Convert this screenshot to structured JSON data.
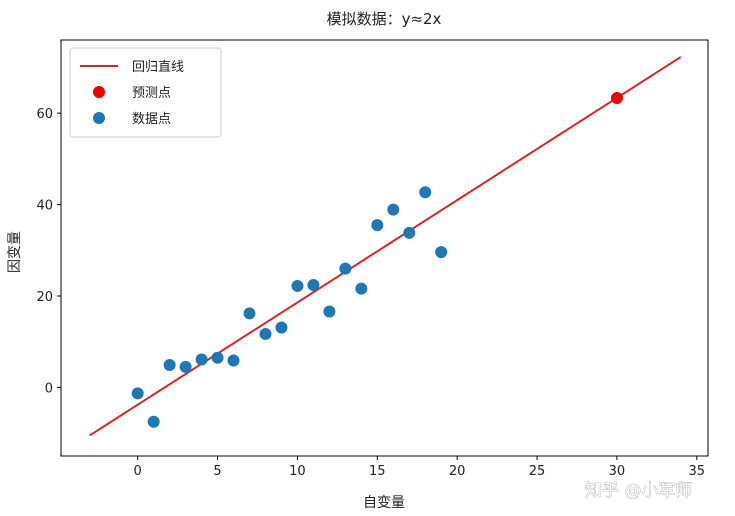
{
  "chart_data": {
    "type": "scatter",
    "title": "模拟数据：y≈2x",
    "xlabel": "自变量",
    "ylabel": "因变量",
    "xlim": [
      -4.8,
      35.7
    ],
    "ylim": [
      -15,
      76
    ],
    "xticks": [
      0,
      5,
      10,
      15,
      20,
      25,
      30,
      35
    ],
    "yticks": [
      0,
      20,
      40,
      60
    ],
    "grid": false,
    "legend_position": "top-left",
    "series": [
      {
        "name": "回归直线",
        "kind": "line",
        "color": "#d62728",
        "x": [
          -3,
          34
        ],
        "y": [
          -10.5,
          72.3
        ]
      },
      {
        "name": "预测点",
        "kind": "scatter",
        "color": "#ee0000",
        "x": [
          30
        ],
        "y": [
          63.3
        ]
      },
      {
        "name": "数据点",
        "kind": "scatter",
        "color": "#1f77b4",
        "x": [
          0,
          1,
          2,
          3,
          4,
          5,
          6,
          7,
          8,
          9,
          10,
          11,
          12,
          13,
          14,
          15,
          16,
          17,
          18,
          19
        ],
        "y": [
          -1.3,
          -7.5,
          4.9,
          4.5,
          6.1,
          6.5,
          5.9,
          16.2,
          11.7,
          13.1,
          22.2,
          22.4,
          16.6,
          26.0,
          21.6,
          35.5,
          38.9,
          33.8,
          42.7,
          29.6
        ]
      }
    ]
  },
  "watermark": "知乎 @小军师"
}
